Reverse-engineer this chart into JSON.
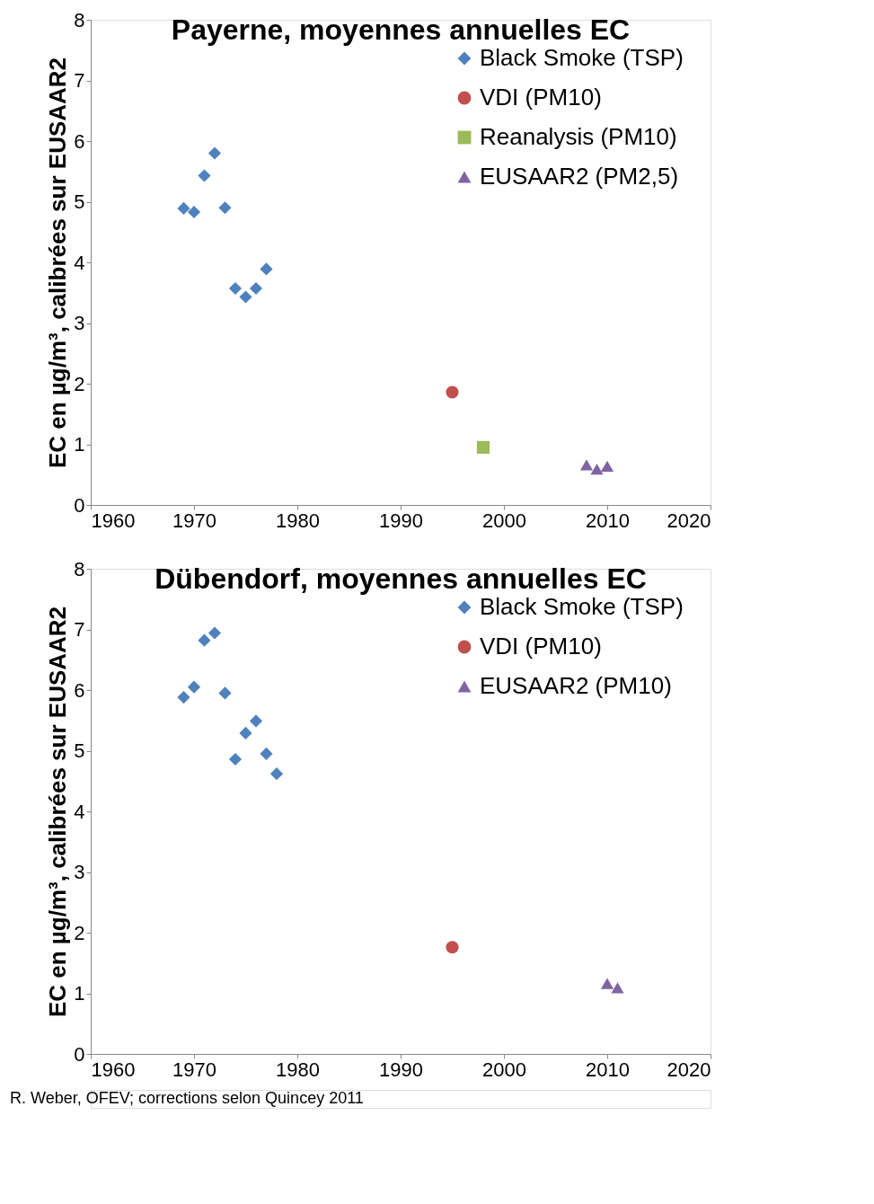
{
  "chart_data": [
    {
      "type": "scatter",
      "title": "Payerne, moyennes annuelles EC",
      "ylabel": "EC en µg/m³, calibrées sur EUSAAR2",
      "xlim": [
        1960,
        2020
      ],
      "xticks": [
        1960,
        1970,
        1980,
        1990,
        2000,
        2010,
        2020
      ],
      "ylim": [
        0,
        8
      ],
      "yticks": [
        0,
        1,
        2,
        3,
        4,
        5,
        6,
        7,
        8
      ],
      "grid": false,
      "legend": "top right",
      "series": [
        {
          "name": "Black Smoke (TSP)",
          "color": "#4f81bd",
          "marker": "diamond",
          "x": [
            1969,
            1970,
            1971,
            1972,
            1973,
            1974,
            1975,
            1976,
            1977
          ],
          "values": [
            4.89,
            4.83,
            5.43,
            5.8,
            4.9,
            3.57,
            3.43,
            3.57,
            3.89
          ]
        },
        {
          "name": "VDI (PM10)",
          "color": "#c0504d",
          "marker": "circle",
          "x": [
            1995
          ],
          "values": [
            1.86
          ]
        },
        {
          "name": "Reanalysis (PM10)",
          "color": "#9bbb59",
          "marker": "square",
          "x": [
            1998
          ],
          "values": [
            0.95
          ]
        },
        {
          "name": "EUSAAR2 (PM2,5)",
          "color": "#8064a2",
          "marker": "triangle",
          "x": [
            2008,
            2009,
            2010
          ],
          "values": [
            0.66,
            0.59,
            0.64
          ]
        }
      ]
    },
    {
      "type": "scatter",
      "title": "Dübendorf, moyennes annuelles EC",
      "ylabel": "EC en µg/m³, calibrées sur EUSAAR2",
      "xlim": [
        1960,
        2020
      ],
      "xticks": [
        1960,
        1970,
        1980,
        1990,
        2000,
        2010,
        2020
      ],
      "ylim": [
        0,
        8
      ],
      "yticks": [
        0,
        1,
        2,
        3,
        4,
        5,
        6,
        7,
        8
      ],
      "grid": false,
      "legend": "top right",
      "annotations": [
        "R. Weber, OFEV; corrections selon Quincey 2011"
      ],
      "series": [
        {
          "name": "Black Smoke (TSP)",
          "color": "#4f81bd",
          "marker": "diamond",
          "x": [
            1969,
            1970,
            1971,
            1972,
            1973,
            1974,
            1975,
            1976,
            1977,
            1978
          ],
          "values": [
            5.88,
            6.05,
            6.82,
            6.94,
            5.95,
            4.86,
            5.29,
            5.49,
            4.95,
            4.62
          ]
        },
        {
          "name": "VDI (PM10)",
          "color": "#c0504d",
          "marker": "circle",
          "x": [
            1995
          ],
          "values": [
            1.76
          ]
        },
        {
          "name": "EUSAAR2 (PM10)",
          "color": "#8064a2",
          "marker": "triangle",
          "x": [
            2010,
            2011
          ],
          "values": [
            1.16,
            1.09
          ]
        }
      ]
    }
  ]
}
